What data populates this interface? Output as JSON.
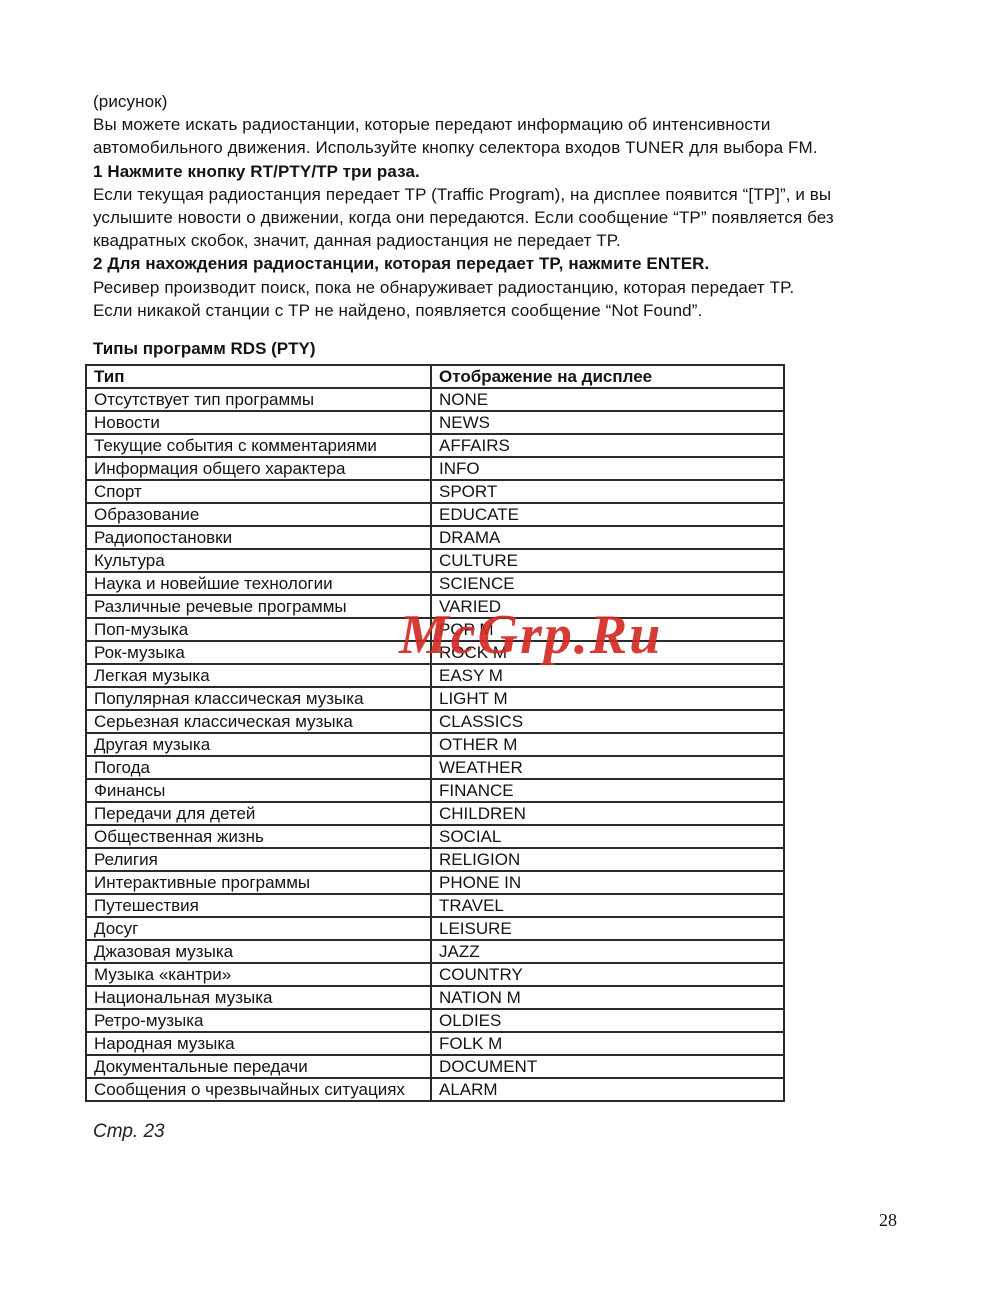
{
  "page": {
    "page_number": "28",
    "source_page_label": "Стр. 23"
  },
  "watermark": {
    "text": "McGrp.Ru",
    "color": "#d32b24"
  },
  "intro": {
    "lines": [
      {
        "text": "(рисунок)",
        "bold": false
      },
      {
        "text": "Вы можете искать радиостанции, которые передают информацию об интенсивности",
        "bold": false
      },
      {
        "text": "автомобильного движения. Используйте кнопку селектора входов TUNER для выбора FM.",
        "bold": false
      },
      {
        "text": "1 Нажмите кнопку RT/PTY/TP три раза.",
        "bold": true
      },
      {
        "text": "Если текущая радиостанция передает TP (Traffic Program), на дисплее появится “[TP]”, и вы",
        "bold": false
      },
      {
        "text": "услышите новости о движении, когда они передаются. Если сообщение “TP” появляется без",
        "bold": false
      },
      {
        "text": "квадратных скобок, значит, данная радиостанция не передает TP.",
        "bold": false
      },
      {
        "text": "2 Для нахождения радиостанции, которая передает TP, нажмите ENTER.",
        "bold": true
      },
      {
        "text": "Ресивер производит поиск, пока не обнаруживает радиостанцию, которая передает TP.",
        "bold": false
      },
      {
        "text": "Если никакой станции с TP не найдено, появляется сообщение “Not Found”.",
        "bold": false
      }
    ]
  },
  "table": {
    "title": "Типы программ RDS (PTY)",
    "headers": [
      "Тип",
      "Отображение на дисплее"
    ],
    "rows": [
      [
        "Отсутствует тип программы",
        "NONE"
      ],
      [
        "Новости",
        "NEWS"
      ],
      [
        "Текущие события с комментариями",
        "AFFAIRS"
      ],
      [
        "Информация общего характера",
        "INFO"
      ],
      [
        "Спорт",
        "SPORT"
      ],
      [
        "Образование",
        "EDUCATE"
      ],
      [
        "Радиопостановки",
        "DRAMA"
      ],
      [
        "Культура",
        "CULTURE"
      ],
      [
        "Наука и новейшие технологии",
        "SCIENCE"
      ],
      [
        "Различные речевые программы",
        "VARIED"
      ],
      [
        "Поп-музыка",
        "POP M"
      ],
      [
        "Рок-музыка",
        "ROCK M"
      ],
      [
        "Легкая музыка",
        "EASY M"
      ],
      [
        "Популярная классическая музыка",
        "LIGHT M"
      ],
      [
        "Серьезная классическая музыка",
        "CLASSICS"
      ],
      [
        "Другая музыка",
        "OTHER M"
      ],
      [
        "Погода",
        "WEATHER"
      ],
      [
        "Финансы",
        "FINANCE"
      ],
      [
        "Передачи для детей",
        "CHILDREN"
      ],
      [
        "Общественная жизнь",
        "SOCIAL"
      ],
      [
        "Религия",
        "RELIGION"
      ],
      [
        "Интерактивные программы",
        "PHONE IN"
      ],
      [
        "Путешествия",
        "TRAVEL"
      ],
      [
        "Досуг",
        "LEISURE"
      ],
      [
        "Джазовая музыка",
        "JAZZ"
      ],
      [
        "Музыка «кантри»",
        "COUNTRY"
      ],
      [
        "Национальная музыка",
        "NATION M"
      ],
      [
        "Ретро-музыка",
        "OLDIES"
      ],
      [
        "Народная музыка",
        "FOLK M"
      ],
      [
        "Документальные передачи",
        "DOCUMENT"
      ],
      [
        "Сообщения о чрезвычайных ситуациях",
        "ALARM"
      ]
    ]
  }
}
